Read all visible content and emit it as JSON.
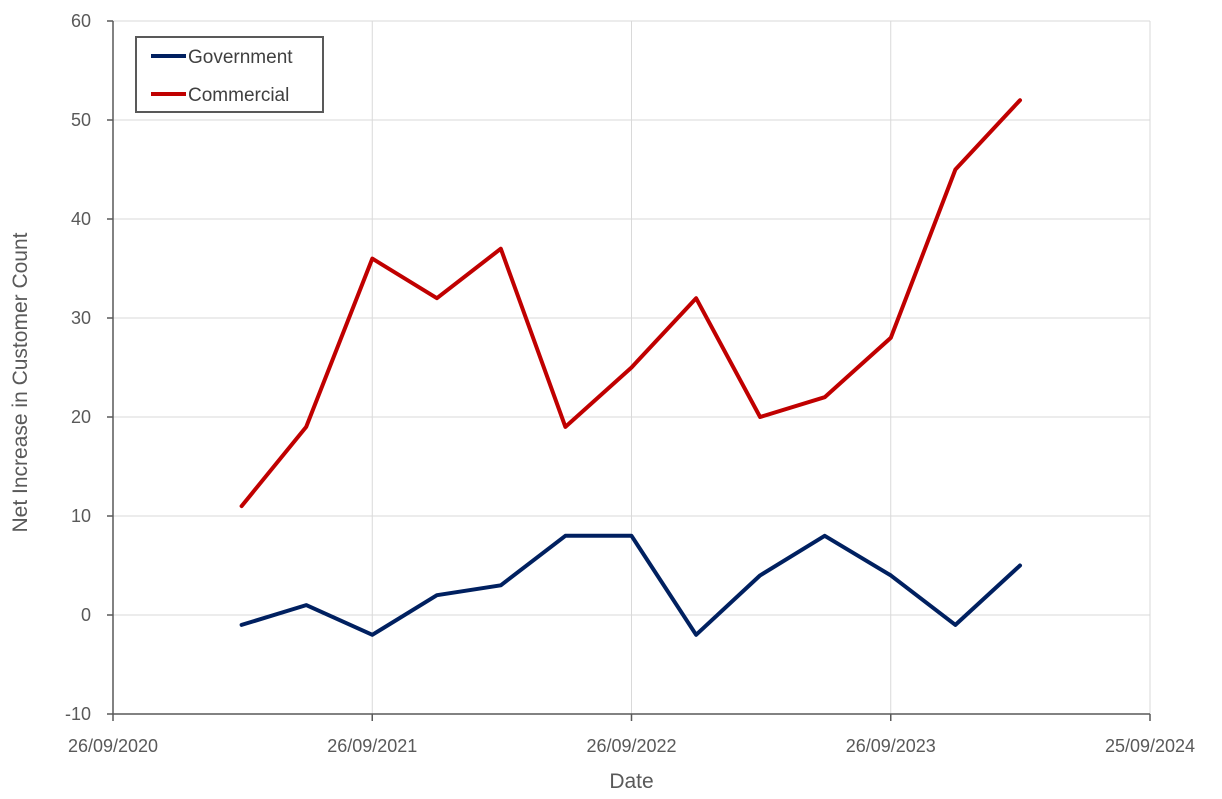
{
  "chart_data": {
    "type": "line",
    "title": "",
    "xlabel": "Date",
    "ylabel": "Net Increase in Customer Count",
    "x_ticks": [
      "26/09/2020",
      "26/09/2021",
      "26/09/2022",
      "26/09/2023",
      "25/09/2024"
    ],
    "xlim": [
      "2020-09-26",
      "2024-09-25"
    ],
    "ylim": [
      -10,
      60
    ],
    "y_ticks": [
      -10,
      0,
      10,
      20,
      30,
      40,
      50,
      60
    ],
    "grid": true,
    "legend_position": "top-left",
    "x": [
      "2021-03-26",
      "2021-06-25",
      "2021-09-26",
      "2021-12-26",
      "2022-03-26",
      "2022-06-25",
      "2022-09-26",
      "2022-12-26",
      "2023-03-26",
      "2023-06-25",
      "2023-09-26",
      "2023-12-26",
      "2024-03-26"
    ],
    "series": [
      {
        "name": "Government",
        "color": "#002060",
        "values": [
          -1,
          1,
          -2,
          2,
          3,
          8,
          8,
          -2,
          4,
          8,
          4,
          -1,
          5
        ]
      },
      {
        "name": "Commercial",
        "color": "#C00000",
        "values": [
          11,
          19,
          36,
          32,
          37,
          19,
          25,
          32,
          20,
          22,
          28,
          45,
          52
        ]
      }
    ]
  }
}
